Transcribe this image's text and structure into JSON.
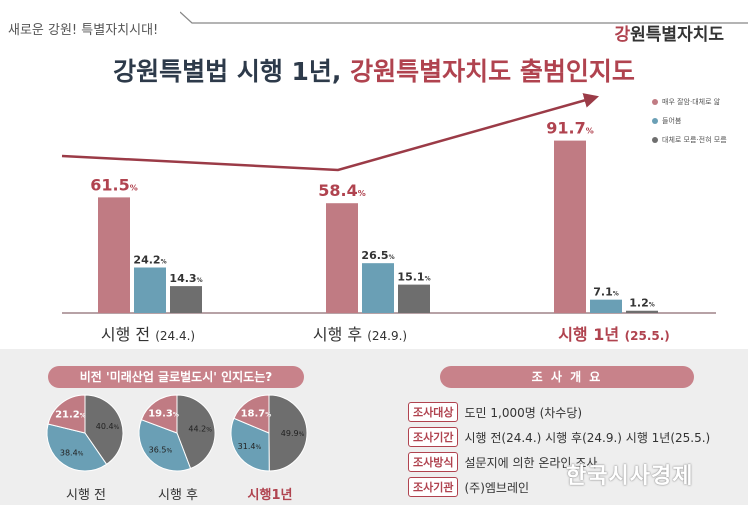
{
  "header": {
    "tagline": "새로운 강원! 특별자치시대!",
    "logo_accent": "강",
    "logo_rest": "원특별자치도"
  },
  "headline": {
    "part1": "강원특별법 시행 1년, ",
    "part2": "강원특별자치도 출범인지도"
  },
  "colors": {
    "aware": "#c07b83",
    "heard": "#6a9fb5",
    "unaware": "#6e6e6e",
    "accent": "#b0434f"
  },
  "legend": [
    {
      "label": "매우 잘암·대체로 앎",
      "color": "#c07b83"
    },
    {
      "label": "들어봄",
      "color": "#6a9fb5"
    },
    {
      "label": "대체로 모름·전혀 모름",
      "color": "#6e6e6e"
    }
  ],
  "chart_data": [
    {
      "type": "bar",
      "categories": [
        "시행 전",
        "시행 후",
        "시행 1년"
      ],
      "category_dates": [
        "(24.4.)",
        "(24.9.)",
        "(25.5.)"
      ],
      "series": [
        {
          "name": "매우 잘암·대체로 앎",
          "values": [
            61.5,
            58.4,
            91.7
          ]
        },
        {
          "name": "들어봄",
          "values": [
            24.2,
            26.5,
            7.1
          ]
        },
        {
          "name": "대체로 모름·전혀 모름",
          "values": [
            14.3,
            15.1,
            1.2
          ]
        }
      ],
      "unit": "%",
      "ylim": [
        0,
        100
      ],
      "trend_arrow": true
    },
    {
      "type": "pie",
      "title": "비전 '미래산업 글로벌도시' 인지도는?",
      "pies": [
        {
          "label": "시행 전",
          "values": [
            21.2,
            38.4,
            40.4
          ]
        },
        {
          "label": "시행 후",
          "values": [
            19.3,
            36.5,
            44.2
          ]
        },
        {
          "label": "시행1년",
          "values": [
            18.7,
            31.4,
            49.9
          ]
        }
      ],
      "unit": "%"
    }
  ],
  "survey": {
    "title": "조 사 개 요",
    "rows": [
      {
        "key": "조사대상",
        "value": "도민 1,000명 (차수당)"
      },
      {
        "key": "조사기간",
        "value": "시행 전(24.4.) 시행 후(24.9.) 시행 1년(25.5.)"
      },
      {
        "key": "조사방식",
        "value": "설문지에 의한 온라인 조사"
      },
      {
        "key": "조사기관",
        "value": "(주)엠브레인"
      }
    ]
  },
  "watermark": "한국시사경제"
}
